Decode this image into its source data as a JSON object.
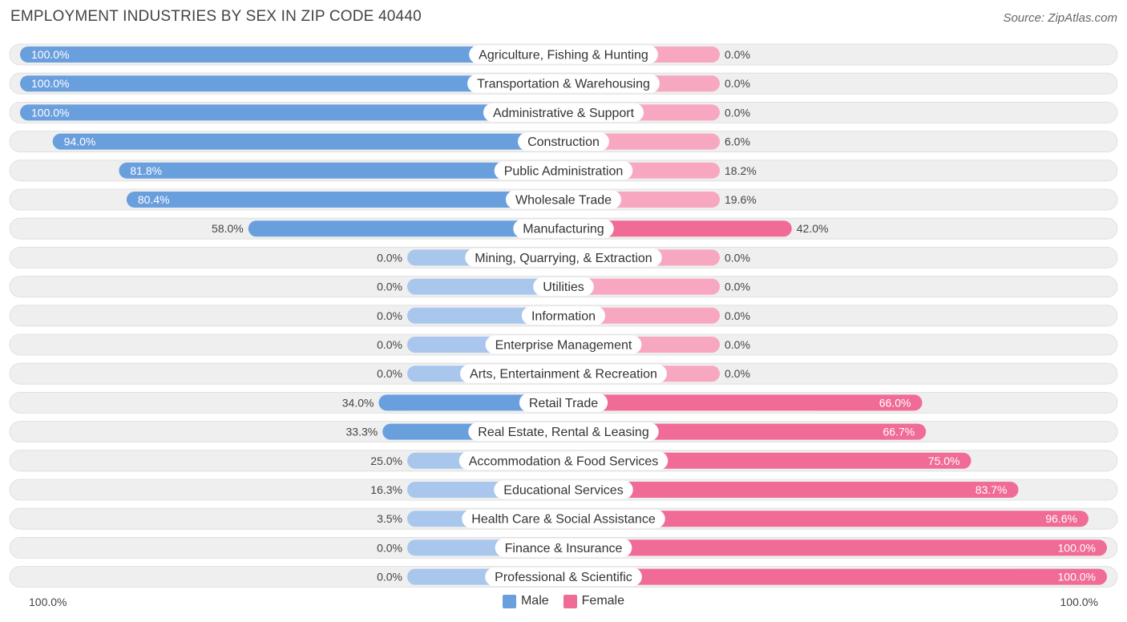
{
  "title": "EMPLOYMENT INDUSTRIES BY SEX IN ZIP CODE 40440",
  "source": "Source: ZipAtlas.com",
  "colors": {
    "male_strong": "#6a9fde",
    "male_light": "#a9c7ec",
    "female_strong": "#f06b95",
    "female_light": "#f7a8c0",
    "row_bg": "#efefef"
  },
  "legend": {
    "male": "Male",
    "female": "Female"
  },
  "axis": {
    "left_label": "100.0%",
    "right_label": "100.0%"
  },
  "chart_data": {
    "type": "bar",
    "orientation": "horizontal-diverging",
    "title": "EMPLOYMENT INDUSTRIES BY SEX IN ZIP CODE 40440",
    "xlim": [
      -100,
      100
    ],
    "series": [
      {
        "name": "Male",
        "values": [
          100.0,
          100.0,
          100.0,
          94.0,
          81.8,
          80.4,
          58.0,
          0.0,
          0.0,
          0.0,
          0.0,
          0.0,
          34.0,
          33.3,
          25.0,
          16.3,
          3.5,
          0.0,
          0.0
        ]
      },
      {
        "name": "Female",
        "values": [
          0.0,
          0.0,
          0.0,
          6.0,
          18.2,
          19.6,
          42.0,
          0.0,
          0.0,
          0.0,
          0.0,
          0.0,
          66.0,
          66.7,
          75.0,
          83.7,
          96.6,
          100.0,
          100.0
        ]
      }
    ],
    "categories": [
      "Agriculture, Fishing & Hunting",
      "Transportation & Warehousing",
      "Administrative & Support",
      "Construction",
      "Public Administration",
      "Wholesale Trade",
      "Manufacturing",
      "Mining, Quarrying, & Extraction",
      "Utilities",
      "Information",
      "Enterprise Management",
      "Arts, Entertainment & Recreation",
      "Retail Trade",
      "Real Estate, Rental & Leasing",
      "Accommodation & Food Services",
      "Educational Services",
      "Health Care & Social Assistance",
      "Finance & Insurance",
      "Professional & Scientific"
    ],
    "male_labels": [
      "100.0%",
      "100.0%",
      "100.0%",
      "94.0%",
      "81.8%",
      "80.4%",
      "58.0%",
      "0.0%",
      "0.0%",
      "0.0%",
      "0.0%",
      "0.0%",
      "34.0%",
      "33.3%",
      "25.0%",
      "16.3%",
      "3.5%",
      "0.0%",
      "0.0%"
    ],
    "female_labels": [
      "0.0%",
      "0.0%",
      "0.0%",
      "6.0%",
      "18.2%",
      "19.6%",
      "42.0%",
      "0.0%",
      "0.0%",
      "0.0%",
      "0.0%",
      "0.0%",
      "66.0%",
      "66.7%",
      "75.0%",
      "83.7%",
      "96.6%",
      "100.0%",
      "100.0%"
    ]
  }
}
